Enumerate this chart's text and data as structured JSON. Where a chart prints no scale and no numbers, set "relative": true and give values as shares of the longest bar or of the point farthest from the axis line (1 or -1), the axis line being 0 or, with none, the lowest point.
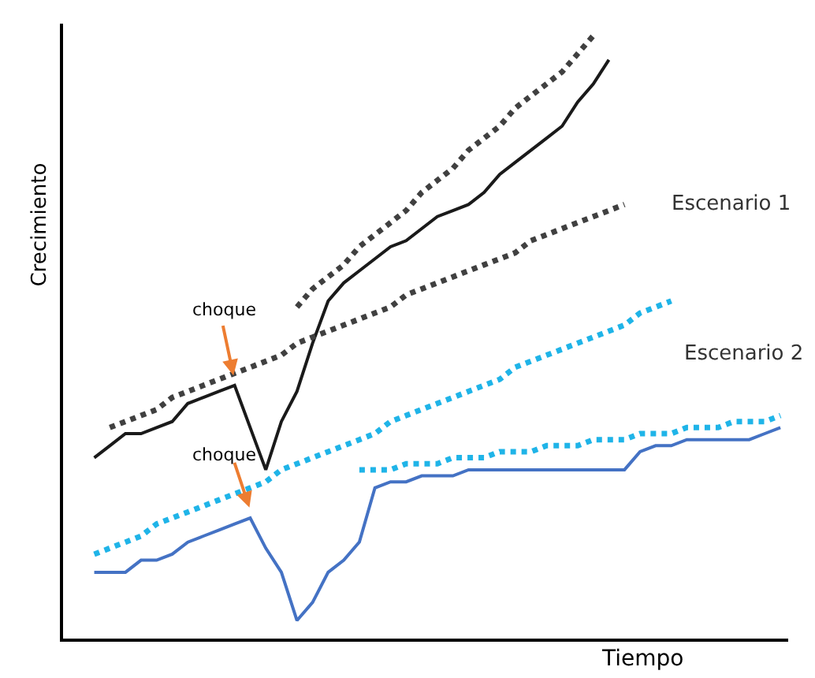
{
  "chart_data": {
    "type": "line",
    "relative": true,
    "xlabel": "Tiempo",
    "ylabel": "Crecimiento",
    "categories": [
      null,
      null,
      null,
      null,
      null,
      null,
      null,
      null,
      null,
      null,
      null,
      null,
      null,
      null,
      null,
      null,
      null,
      null,
      null,
      null,
      null,
      null,
      null,
      null,
      null,
      null,
      null,
      null,
      null,
      null,
      null,
      null,
      null,
      null,
      null,
      null,
      null,
      null,
      null,
      null,
      null,
      null,
      null,
      null,
      null
    ],
    "series": [
      {
        "color": "#1a1a1a",
        "line_style": "solid",
        "values": [
          0.3,
          0.32,
          0.34,
          0.34,
          0.35,
          0.36,
          0.39,
          0.4,
          0.41,
          0.42,
          0.35,
          0.28,
          0.36,
          0.41,
          0.49,
          0.56,
          0.59,
          0.61,
          0.63,
          0.65,
          0.66,
          0.68,
          0.7,
          0.71,
          0.72,
          0.74,
          0.77,
          0.79,
          0.81,
          0.83,
          0.85,
          0.89,
          0.92,
          0.96,
          null,
          null,
          null,
          null,
          null,
          null,
          null,
          null,
          null,
          null,
          null
        ]
      },
      {
        "color": "#404040",
        "line_style": "dotted",
        "values": [
          null,
          null,
          null,
          null,
          null,
          null,
          null,
          null,
          null,
          null,
          null,
          null,
          null,
          0.55,
          0.58,
          0.6,
          0.62,
          0.65,
          0.67,
          0.69,
          0.71,
          0.74,
          0.76,
          0.78,
          0.81,
          0.83,
          0.85,
          0.88,
          0.9,
          0.92,
          0.94,
          0.97,
          1,
          null,
          null,
          null,
          null,
          null,
          null,
          null,
          null,
          null,
          null,
          null,
          null
        ]
      },
      {
        "name": "Escenario 1",
        "color": "#404040",
        "line_style": "dotted",
        "values": [
          null,
          0.35,
          0.36,
          0.37,
          0.38,
          0.4,
          0.41,
          0.42,
          0.43,
          0.44,
          0.45,
          0.46,
          0.47,
          0.49,
          0.5,
          0.51,
          0.52,
          0.53,
          0.54,
          0.55,
          0.57,
          0.58,
          0.59,
          0.6,
          0.61,
          0.62,
          0.63,
          0.64,
          0.66,
          0.67,
          0.68,
          0.69,
          0.7,
          0.71,
          0.72,
          null,
          null,
          null,
          null,
          null,
          null,
          null,
          null,
          null,
          null
        ]
      },
      {
        "name": "Escenario 2",
        "color": "#1fb4e8",
        "line_style": "dotted",
        "values": [
          0.14,
          0.15,
          0.16,
          0.17,
          0.19,
          0.2,
          0.21,
          0.22,
          0.23,
          0.24,
          0.25,
          0.26,
          0.28,
          0.29,
          0.3,
          0.31,
          0.32,
          0.33,
          0.34,
          0.36,
          0.37,
          0.38,
          0.39,
          0.4,
          0.41,
          0.42,
          0.43,
          0.45,
          0.46,
          0.47,
          0.48,
          0.49,
          0.5,
          0.51,
          0.52,
          0.54,
          0.55,
          0.56,
          null,
          null,
          null,
          null,
          null,
          null,
          null
        ]
      },
      {
        "color": "#1fb4e8",
        "line_style": "dotted",
        "values": [
          null,
          null,
          null,
          null,
          null,
          null,
          null,
          null,
          null,
          null,
          null,
          null,
          null,
          null,
          null,
          null,
          null,
          0.28,
          0.28,
          0.28,
          0.29,
          0.29,
          0.29,
          0.3,
          0.3,
          0.3,
          0.31,
          0.31,
          0.31,
          0.32,
          0.32,
          0.32,
          0.33,
          0.33,
          0.33,
          0.34,
          0.34,
          0.34,
          0.35,
          0.35,
          0.35,
          0.36,
          0.36,
          0.36,
          0.37
        ]
      },
      {
        "color": "#4472c4",
        "line_style": "solid",
        "values": [
          0.11,
          0.11,
          0.11,
          0.13,
          0.13,
          0.14,
          0.16,
          0.17,
          0.18,
          0.19,
          0.2,
          0.15,
          0.11,
          0.03,
          0.06,
          0.11,
          0.13,
          0.16,
          0.25,
          0.26,
          0.26,
          0.27,
          0.27,
          0.27,
          0.28,
          0.28,
          0.28,
          0.28,
          0.28,
          0.28,
          0.28,
          0.28,
          0.28,
          0.28,
          0.28,
          0.31,
          0.32,
          0.32,
          0.33,
          0.33,
          0.33,
          0.33,
          0.33,
          0.34,
          0.35
        ]
      }
    ],
    "annotations": [
      "choque",
      "choque"
    ],
    "marker": "none",
    "legend": false,
    "grid": false,
    "tick_labels": false
  }
}
